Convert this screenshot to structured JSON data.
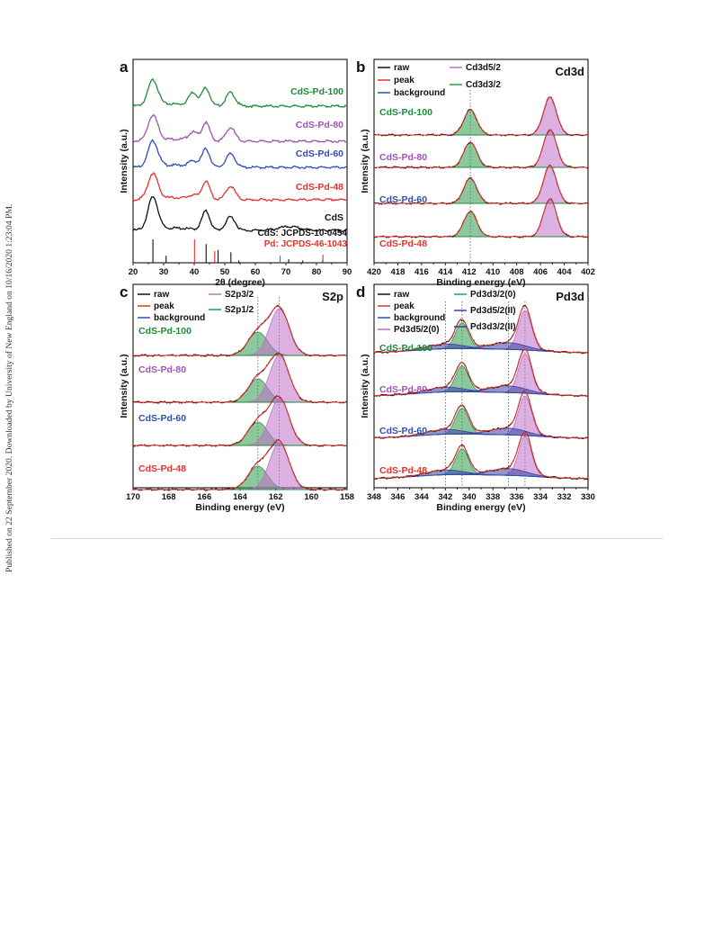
{
  "side_note": "Published on 22 September 2020. Downloaded by University of New England on 10/16/2020 1:23:04 PM.",
  "colors": {
    "cds": "#111111",
    "pd48": "#e8302b",
    "pd60": "#2f4fb0",
    "pd80": "#a052b6",
    "pd100": "#1c8c3a",
    "legend_peak": "#e8302b",
    "legend_bg": "#2f4fb0",
    "purple_fill": "#c06fc8",
    "green_fill": "#2f9a4a",
    "navy_fill": "#3b3f9e"
  },
  "chart_data": [
    {
      "panel": "a",
      "type": "line",
      "xlabel": "2θ (degree)",
      "ylabel": "Intensity (a.u.)",
      "xlim": [
        20,
        90
      ],
      "xticks": [
        20,
        30,
        40,
        50,
        60,
        70,
        80,
        90
      ],
      "series": [
        {
          "name": "CdS-Pd-100",
          "color": "#1c8c3a",
          "peaks": [
            {
              "x": 26.5,
              "h": 28,
              "w": 1.6
            },
            {
              "x": 39.6,
              "h": 14,
              "w": 1.4
            },
            {
              "x": 43.8,
              "h": 20,
              "w": 1.3
            },
            {
              "x": 51.9,
              "h": 15,
              "w": 1.5
            }
          ]
        },
        {
          "name": "CdS-Pd-80",
          "color": "#a052b6",
          "peaks": [
            {
              "x": 26.5,
              "h": 28,
              "w": 1.6
            },
            {
              "x": 39.6,
              "h": 9,
              "w": 1.4
            },
            {
              "x": 43.8,
              "h": 20,
              "w": 1.3
            },
            {
              "x": 51.9,
              "h": 15,
              "w": 1.5
            }
          ]
        },
        {
          "name": "CdS-Pd-60",
          "color": "#2f4fb0",
          "peaks": [
            {
              "x": 26.5,
              "h": 28,
              "w": 1.6
            },
            {
              "x": 39.6,
              "h": 6,
              "w": 1.4
            },
            {
              "x": 43.8,
              "h": 20,
              "w": 1.3
            },
            {
              "x": 51.9,
              "h": 15,
              "w": 1.5
            }
          ]
        },
        {
          "name": "CdS-Pd-48",
          "color": "#e8302b",
          "peaks": [
            {
              "x": 26.5,
              "h": 28,
              "w": 1.6
            },
            {
              "x": 39.6,
              "h": 4,
              "w": 1.4
            },
            {
              "x": 43.8,
              "h": 20,
              "w": 1.3
            },
            {
              "x": 51.9,
              "h": 15,
              "w": 1.5
            }
          ]
        },
        {
          "name": "CdS",
          "color": "#111111",
          "peaks": [
            {
              "x": 26.5,
              "h": 36,
              "w": 1.6
            },
            {
              "x": 43.8,
              "h": 21,
              "w": 1.3
            },
            {
              "x": 51.9,
              "h": 15,
              "w": 1.5
            },
            {
              "x": 71,
              "h": 4,
              "w": 3.5
            }
          ]
        }
      ],
      "reference": [
        {
          "name": "CdS: JCPDS-10-0454",
          "color": "#111111",
          "lines": [
            {
              "x": 26.5,
              "h": 1.0
            },
            {
              "x": 30.8,
              "h": 0.3
            },
            {
              "x": 43.9,
              "h": 0.8
            },
            {
              "x": 47.8,
              "h": 0.55
            },
            {
              "x": 52.0,
              "h": 0.45
            },
            {
              "x": 54.6,
              "h": 0.1
            },
            {
              "x": 70.9,
              "h": 0.15
            },
            {
              "x": 75.5,
              "h": 0.1
            },
            {
              "x": 82.0,
              "h": 0.1
            }
          ]
        },
        {
          "name": "Pd: JCPDS-46-1043",
          "color": "#e8302b",
          "lines": [
            {
              "x": 40.1,
              "h": 1.0
            },
            {
              "x": 46.7,
              "h": 0.5
            },
            {
              "x": 68.1,
              "h": 0.3
            },
            {
              "x": 82.1,
              "h": 0.35
            }
          ]
        }
      ]
    },
    {
      "panel": "b",
      "type": "line",
      "title": "Cd3d",
      "xlabel": "Binding energy (eV)",
      "ylabel": "Intensity (a.u.)",
      "xlim": [
        420,
        402
      ],
      "xticks": [
        420,
        418,
        416,
        414,
        412,
        410,
        408,
        406,
        404,
        402
      ],
      "legend": [
        "raw",
        "peak",
        "background",
        "Cd3d5/2",
        "Cd3d3/2"
      ],
      "series": [
        "CdS-Pd-100",
        "CdS-Pd-80",
        "CdS-Pd-60",
        "CdS-Pd-48"
      ],
      "components": [
        {
          "name": "Cd3d3/2",
          "center": 411.9,
          "h": 1.0,
          "w": 0.55
        },
        {
          "name": "Cd3d5/2",
          "center": 405.2,
          "h": 1.5,
          "w": 0.55
        }
      ]
    },
    {
      "panel": "c",
      "type": "line",
      "title": "S2p",
      "xlabel": "Binding energy (eV)",
      "ylabel": "Intensity (a.u.)",
      "xlim": [
        170,
        158
      ],
      "xticks": [
        170,
        168,
        166,
        164,
        162,
        160,
        158
      ],
      "legend": [
        "raw",
        "peak",
        "background",
        "S2p3/2",
        "S2p1/2"
      ],
      "series": [
        "CdS-Pd-100",
        "CdS-Pd-80",
        "CdS-Pd-60",
        "CdS-Pd-48"
      ],
      "components": [
        {
          "name": "S2p1/2",
          "center": 163.0,
          "h": 0.5,
          "w": 0.55
        },
        {
          "name": "S2p3/2",
          "center": 161.8,
          "h": 1.0,
          "w": 0.55
        }
      ]
    },
    {
      "panel": "d",
      "type": "line",
      "title": "Pd3d",
      "xlabel": "Binding energy (eV)",
      "ylabel": "Intensity (a.u.)",
      "xlim": [
        348,
        330
      ],
      "xticks": [
        348,
        346,
        344,
        342,
        340,
        338,
        336,
        334,
        332,
        330
      ],
      "legend": [
        "raw",
        "peak",
        "background",
        "Pd3d5/2(0)",
        "Pd3d3/2(0)",
        "Pd3d5/2(II)",
        "Pd3d3/2(II)"
      ],
      "series": [
        "CdS-Pd-100",
        "CdS-Pd-80",
        "CdS-Pd-60",
        "CdS-Pd-48"
      ],
      "components": [
        {
          "name": "Pd3d3/2(0)",
          "center": 340.6,
          "h": 0.65,
          "w": 0.55
        },
        {
          "name": "Pd3d5/2(0)",
          "center": 335.3,
          "h": 1.0,
          "w": 0.55
        },
        {
          "name": "Pd3d3/2(II)",
          "center": 342.0,
          "h": 0.12,
          "w": 1.5
        },
        {
          "name": "Pd3d5/2(II)",
          "center": 336.7,
          "h": 0.17,
          "w": 1.5
        }
      ],
      "reference_positions": [
        342.0,
        340.6,
        336.7,
        335.3
      ]
    }
  ]
}
